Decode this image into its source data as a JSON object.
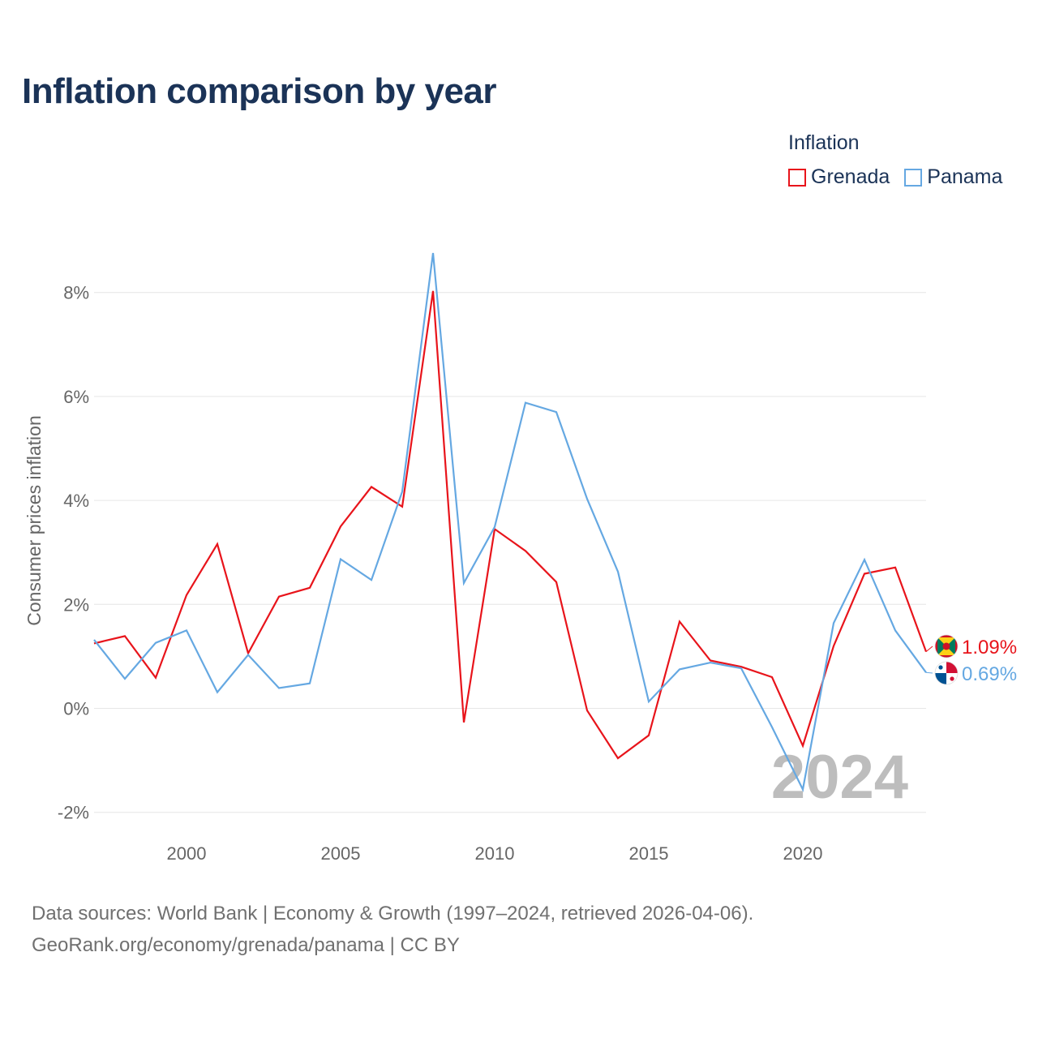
{
  "title": "Inflation comparison by year",
  "legend": {
    "title": "Inflation",
    "items": [
      {
        "label": "Grenada",
        "color": "#e8141b"
      },
      {
        "label": "Panama",
        "color": "#65a8e2"
      }
    ]
  },
  "source": {
    "line1": "Data sources: World Bank | Economy & Growth (1997–2024, retrieved 2026-04-06).",
    "line2": "GeoRank.org/economy/grenada/panama | CC BY"
  },
  "chart_data": {
    "type": "line",
    "title": "Inflation comparison by year",
    "xlabel": "",
    "ylabel": "Consumer prices inflation",
    "xlim": [
      1997,
      2024
    ],
    "ylim": [
      -2.2,
      9.2
    ],
    "grid": true,
    "legend_position": "top-right",
    "watermark_year": "2024",
    "x_ticks": [
      2000,
      2005,
      2010,
      2015,
      2020
    ],
    "x_tick_labels": [
      "2000",
      "2005",
      "2010",
      "2015",
      "2020"
    ],
    "y_ticks": [
      -2,
      0,
      2,
      4,
      6,
      8
    ],
    "y_tick_labels": [
      "-2%",
      "0%",
      "2%",
      "4%",
      "6%",
      "8%"
    ],
    "x": [
      1997,
      1998,
      1999,
      2000,
      2001,
      2002,
      2003,
      2004,
      2005,
      2006,
      2007,
      2008,
      2009,
      2010,
      2011,
      2012,
      2013,
      2014,
      2015,
      2016,
      2017,
      2018,
      2019,
      2020,
      2021,
      2022,
      2023,
      2024
    ],
    "series": [
      {
        "name": "Grenada",
        "color": "#e8141b",
        "end_label": "1.09%",
        "flag": "grenada-flag-icon",
        "values": [
          1.25,
          1.39,
          0.59,
          2.18,
          3.16,
          1.06,
          2.15,
          2.32,
          3.5,
          4.26,
          3.88,
          8.03,
          -0.27,
          3.45,
          3.03,
          2.43,
          -0.04,
          -0.96,
          -0.52,
          1.67,
          0.92,
          0.8,
          0.6,
          -0.72,
          1.2,
          2.59,
          2.71,
          1.09
        ]
      },
      {
        "name": "Panama",
        "color": "#65a8e2",
        "end_label": "0.69%",
        "flag": "panama-flag-icon",
        "values": [
          1.32,
          0.57,
          1.26,
          1.5,
          0.31,
          1.03,
          0.39,
          0.48,
          2.87,
          2.47,
          4.17,
          8.76,
          2.41,
          3.49,
          5.88,
          5.7,
          4.03,
          2.63,
          0.13,
          0.75,
          0.88,
          0.77,
          -0.36,
          -1.56,
          1.64,
          2.86,
          1.5,
          0.69
        ]
      }
    ]
  }
}
